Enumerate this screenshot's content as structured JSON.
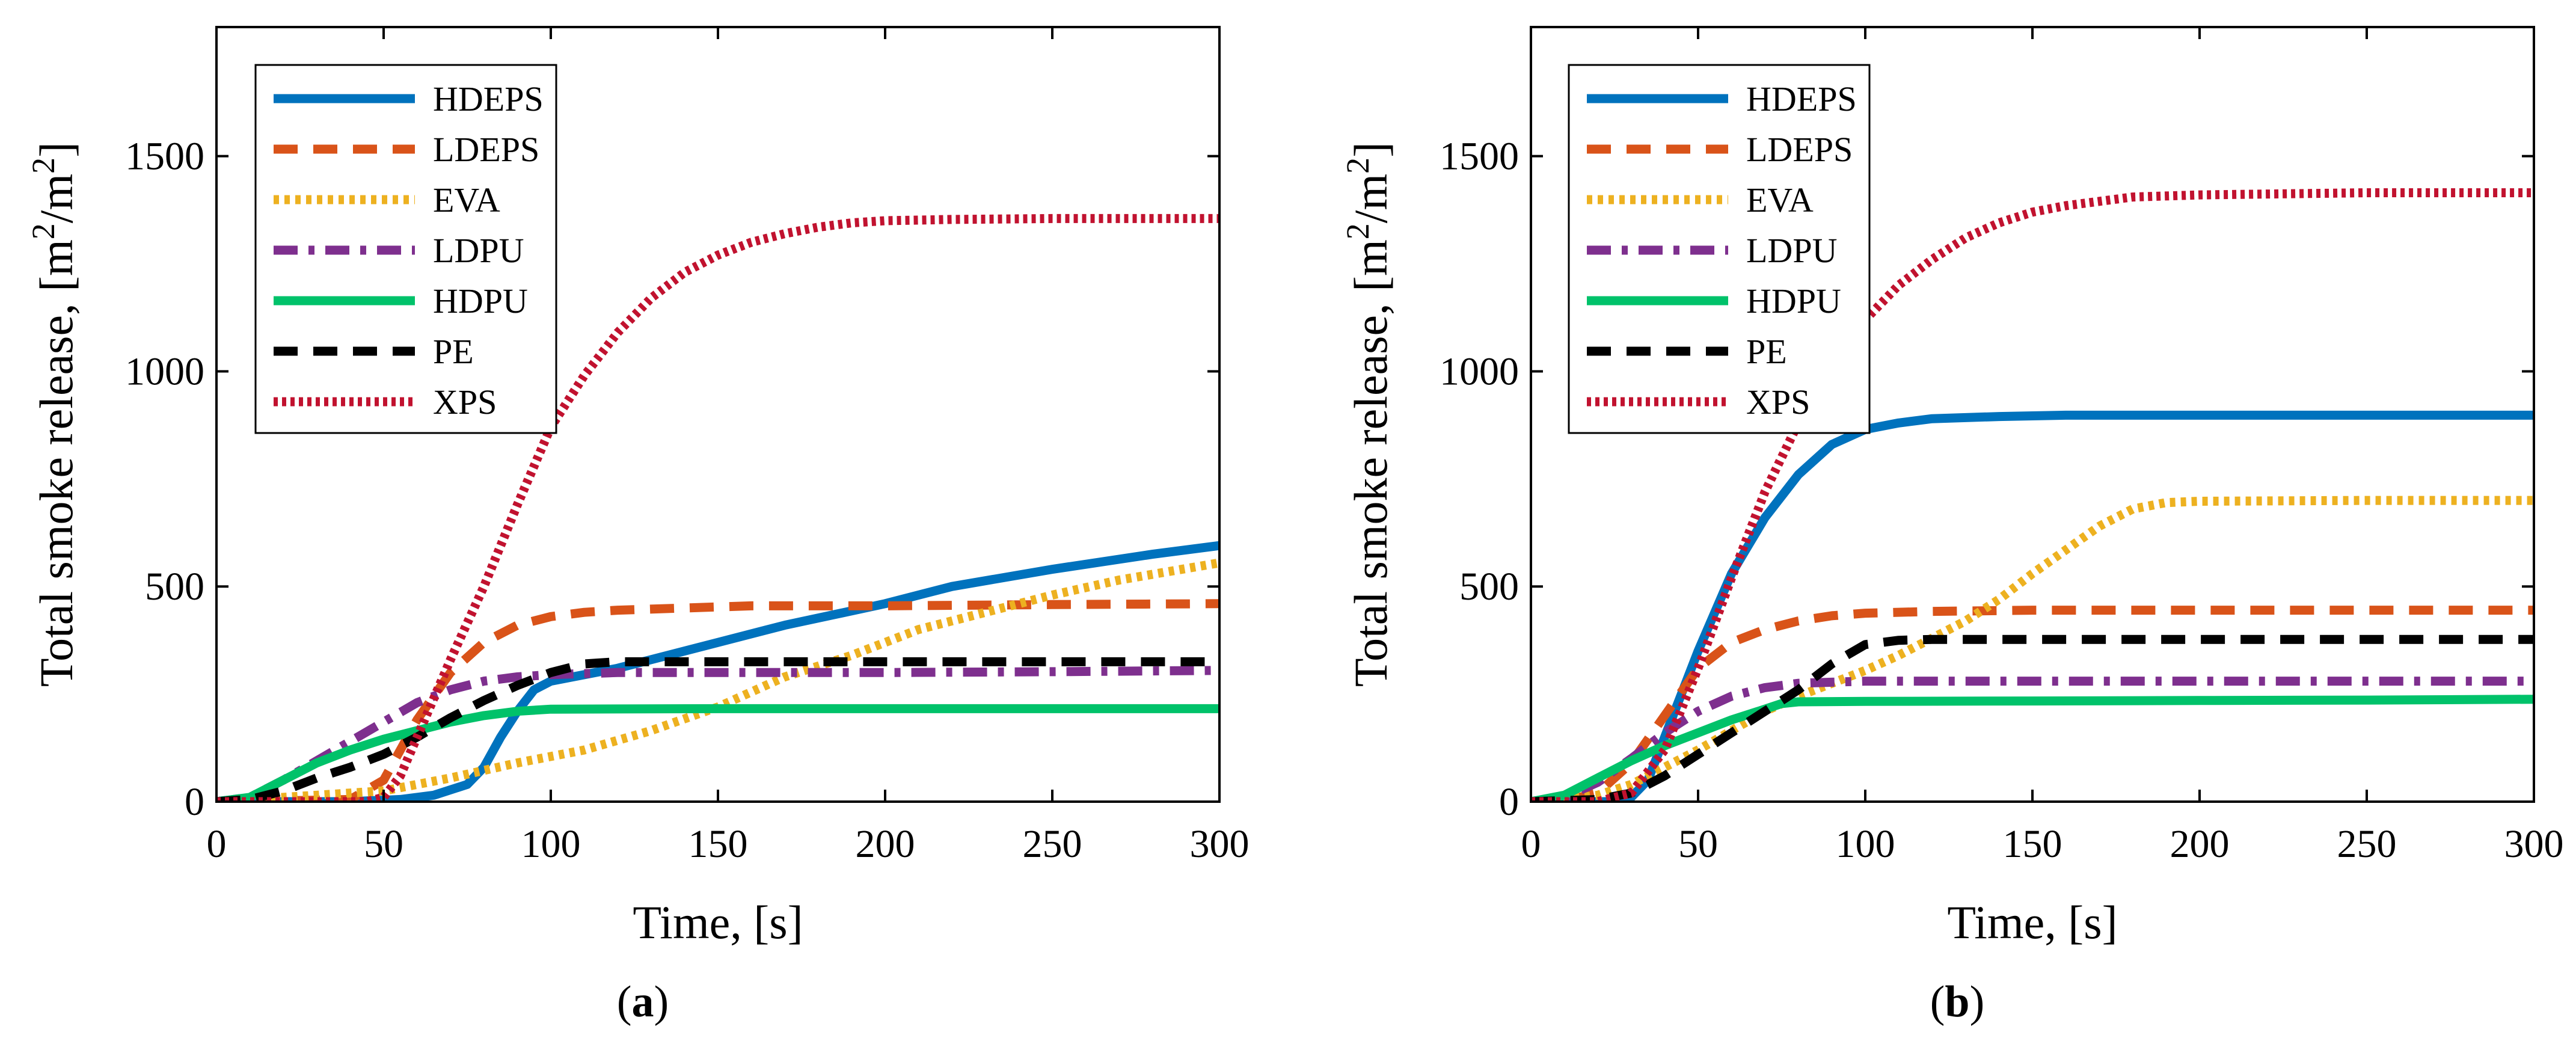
{
  "chart_data": [
    {
      "type": "line",
      "panel_label": "a",
      "caption_open": "(",
      "caption_close": ")",
      "xlabel": "Time, [s]",
      "ylabel": "Total smoke release, [m",
      "ylabel_sup": "2",
      "ylabel_mid": "/m",
      "ylabel_sup2": "2",
      "ylabel_end": "]",
      "xlim": [
        0,
        300
      ],
      "ylim": [
        0,
        1800
      ],
      "xticks": [
        0,
        50,
        100,
        150,
        200,
        250,
        300
      ],
      "yticks": [
        0,
        500,
        1000,
        1500
      ],
      "grid": false,
      "legend_position": "top-left",
      "series": [
        {
          "name": "HDEPS",
          "color": "#0072BD",
          "dash": "solid",
          "x": [
            0,
            40,
            55,
            65,
            75,
            80,
            85,
            90,
            95,
            100,
            110,
            120,
            130,
            150,
            170,
            200,
            220,
            250,
            280,
            300
          ],
          "y": [
            0,
            0,
            5,
            15,
            40,
            80,
            150,
            210,
            260,
            280,
            295,
            310,
            330,
            370,
            410,
            460,
            500,
            540,
            575,
            595
          ]
        },
        {
          "name": "LDEPS",
          "color": "#D95319",
          "dash": "dashed",
          "x": [
            0,
            20,
            40,
            50,
            60,
            70,
            80,
            90,
            100,
            110,
            120,
            140,
            160,
            200,
            250,
            300
          ],
          "y": [
            0,
            2,
            5,
            50,
            190,
            300,
            370,
            410,
            430,
            440,
            445,
            450,
            455,
            455,
            458,
            460
          ]
        },
        {
          "name": "EVA",
          "color": "#EDB120",
          "dash": "dotted",
          "x": [
            0,
            10,
            30,
            50,
            70,
            90,
            110,
            130,
            150,
            170,
            190,
            210,
            230,
            250,
            270,
            300
          ],
          "y": [
            0,
            5,
            15,
            25,
            55,
            90,
            120,
            165,
            220,
            290,
            340,
            400,
            440,
            480,
            515,
            555
          ]
        },
        {
          "name": "LDPU",
          "color": "#7E2F8E",
          "dash": "dashdot",
          "x": [
            0,
            10,
            20,
            30,
            40,
            50,
            60,
            70,
            80,
            90,
            100,
            120,
            150,
            200,
            250,
            300
          ],
          "y": [
            0,
            10,
            50,
            95,
            140,
            185,
            230,
            260,
            280,
            290,
            295,
            300,
            300,
            300,
            302,
            305
          ]
        },
        {
          "name": "HDPU",
          "color": "#00C26A",
          "dash": "solid",
          "x": [
            0,
            10,
            20,
            30,
            40,
            50,
            60,
            70,
            80,
            90,
            100,
            150,
            200,
            250,
            300
          ],
          "y": [
            0,
            10,
            50,
            90,
            120,
            145,
            165,
            185,
            200,
            210,
            215,
            216,
            216,
            216,
            216
          ]
        },
        {
          "name": "PE",
          "color": "#000000",
          "dash": "dashed",
          "x": [
            0,
            10,
            20,
            30,
            40,
            50,
            60,
            70,
            80,
            90,
            100,
            110,
            120,
            150,
            200,
            250,
            300
          ],
          "y": [
            0,
            5,
            25,
            55,
            80,
            110,
            150,
            195,
            235,
            270,
            300,
            320,
            325,
            325,
            325,
            325,
            325
          ]
        },
        {
          "name": "XPS",
          "color": "#C1122F",
          "dash": "densedot",
          "x": [
            0,
            45,
            50,
            55,
            60,
            70,
            80,
            90,
            100,
            110,
            120,
            130,
            140,
            150,
            160,
            170,
            180,
            190,
            200,
            220,
            250,
            300
          ],
          "y": [
            0,
            0,
            10,
            60,
            150,
            330,
            500,
            690,
            870,
            990,
            1090,
            1170,
            1230,
            1270,
            1300,
            1320,
            1335,
            1345,
            1350,
            1353,
            1355,
            1355
          ]
        }
      ]
    },
    {
      "type": "line",
      "panel_label": "b",
      "caption_open": "(",
      "caption_close": ")",
      "xlabel": "Time, [s]",
      "ylabel": "Total smoke release, [m",
      "ylabel_sup": "2",
      "ylabel_mid": "/m",
      "ylabel_sup2": "2",
      "ylabel_end": "]",
      "xlim": [
        0,
        300
      ],
      "ylim": [
        0,
        1800
      ],
      "xticks": [
        0,
        50,
        100,
        150,
        200,
        250,
        300
      ],
      "yticks": [
        0,
        500,
        1000,
        1500
      ],
      "grid": false,
      "legend_position": "top-left",
      "series": [
        {
          "name": "HDEPS",
          "color": "#0072BD",
          "dash": "solid",
          "x": [
            0,
            25,
            30,
            35,
            40,
            50,
            60,
            70,
            80,
            90,
            100,
            110,
            120,
            140,
            160,
            200,
            250,
            300
          ],
          "y": [
            0,
            0,
            10,
            50,
            150,
            350,
            530,
            660,
            760,
            830,
            865,
            880,
            890,
            895,
            898,
            898,
            898,
            898
          ]
        },
        {
          "name": "LDEPS",
          "color": "#D95319",
          "dash": "dashed",
          "x": [
            0,
            10,
            20,
            30,
            40,
            50,
            60,
            70,
            80,
            90,
            100,
            120,
            150,
            200,
            300
          ],
          "y": [
            0,
            2,
            20,
            90,
            200,
            310,
            370,
            400,
            420,
            432,
            438,
            442,
            445,
            445,
            445
          ]
        },
        {
          "name": "EVA",
          "color": "#EDB120",
          "dash": "dotted",
          "x": [
            0,
            10,
            20,
            30,
            40,
            50,
            60,
            70,
            80,
            90,
            100,
            110,
            120,
            130,
            140,
            150,
            160,
            170,
            180,
            190,
            200,
            250,
            300
          ],
          "y": [
            0,
            5,
            15,
            40,
            80,
            120,
            165,
            210,
            245,
            275,
            305,
            340,
            380,
            420,
            470,
            530,
            585,
            640,
            680,
            695,
            698,
            700,
            700
          ]
        },
        {
          "name": "LDPU",
          "color": "#7E2F8E",
          "dash": "dashdot",
          "x": [
            0,
            10,
            20,
            30,
            40,
            50,
            60,
            70,
            80,
            100,
            150,
            200,
            250,
            300
          ],
          "y": [
            0,
            10,
            45,
            100,
            160,
            210,
            245,
            265,
            275,
            280,
            280,
            280,
            280,
            280
          ]
        },
        {
          "name": "HDPU",
          "color": "#00C26A",
          "dash": "solid",
          "x": [
            0,
            10,
            20,
            30,
            40,
            50,
            60,
            70,
            75,
            80,
            100,
            150,
            200,
            250,
            300
          ],
          "y": [
            0,
            15,
            55,
            95,
            130,
            160,
            190,
            215,
            228,
            232,
            233,
            234,
            235,
            236,
            238
          ]
        },
        {
          "name": "PE",
          "color": "#000000",
          "dash": "dashed",
          "x": [
            0,
            20,
            30,
            40,
            50,
            60,
            70,
            80,
            90,
            100,
            110,
            120,
            150,
            200,
            250,
            300
          ],
          "y": [
            0,
            5,
            20,
            60,
            110,
            160,
            210,
            260,
            320,
            365,
            375,
            377,
            377,
            377,
            377,
            377
          ]
        },
        {
          "name": "XPS",
          "color": "#C1122F",
          "dash": "densedot",
          "x": [
            0,
            20,
            30,
            40,
            50,
            60,
            70,
            80,
            90,
            100,
            110,
            120,
            130,
            140,
            150,
            160,
            170,
            180,
            200,
            250,
            300
          ],
          "y": [
            0,
            0,
            20,
            120,
            310,
            520,
            720,
            880,
            1020,
            1120,
            1200,
            1260,
            1310,
            1345,
            1370,
            1385,
            1395,
            1405,
            1410,
            1415,
            1415
          ]
        }
      ]
    }
  ]
}
